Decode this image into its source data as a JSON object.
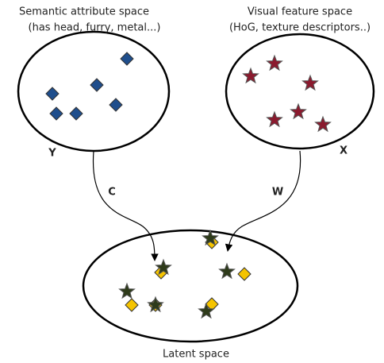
{
  "left_space": {
    "title": "Semantic attribute space",
    "subtitle": "(has head, furry, metal...)",
    "label": "Y"
  },
  "right_space": {
    "title": "Visual feature space",
    "subtitle": "(HoG, texture descriptors..)",
    "label": "X"
  },
  "edges": [
    {
      "label": "C"
    },
    {
      "label": "W"
    }
  ],
  "latent_space": {
    "label": "Latent space"
  }
}
